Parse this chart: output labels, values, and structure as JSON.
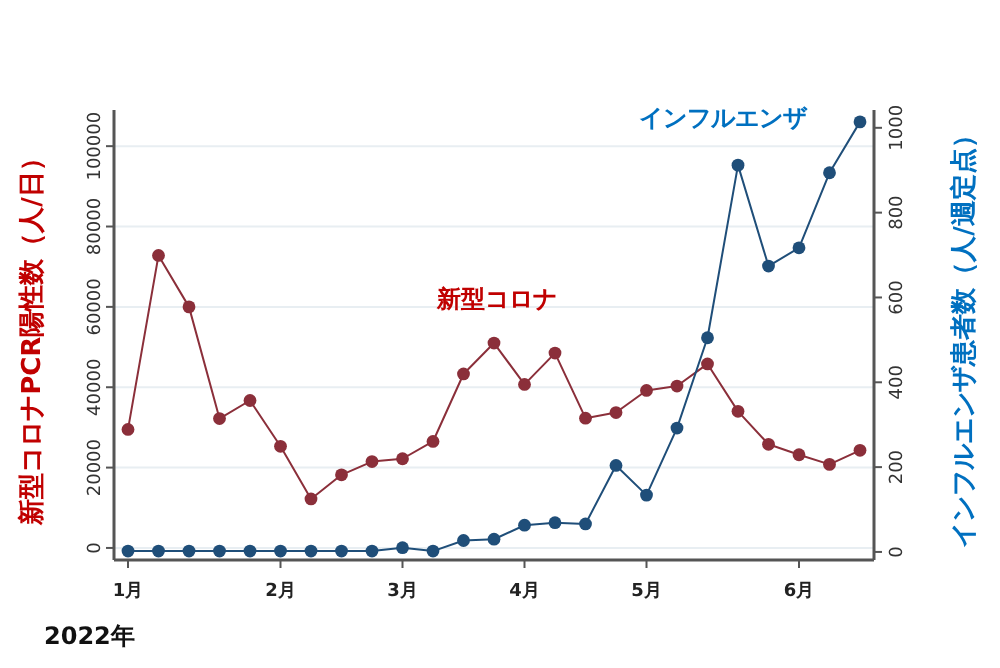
{
  "chart_data": {
    "type": "line",
    "categories": [
      "1月",
      null,
      null,
      null,
      null,
      "2月",
      null,
      null,
      null,
      "3月",
      null,
      null,
      null,
      "4月",
      null,
      null,
      null,
      "5月",
      null,
      null,
      null,
      null,
      "6月",
      null,
      null
    ],
    "series": [
      {
        "name": "新型コロナ",
        "color": "#8b2f3a",
        "values": [
          29500,
          72800,
          60000,
          32200,
          36700,
          25300,
          12200,
          18200,
          21500,
          22200,
          26500,
          43300,
          51000,
          40700,
          48500,
          32300,
          33700,
          39200,
          40300,
          45800,
          34000,
          25800,
          23200,
          20800,
          24300
        ]
      },
      {
        "name": "インフルエンザ",
        "color": "#1f4e79",
        "axis": "y2",
        "values": [
          2,
          2,
          2,
          2,
          2,
          2,
          2,
          2,
          2,
          10,
          2,
          27,
          30,
          63,
          69,
          66,
          204,
          134,
          292,
          505,
          912,
          674,
          717,
          894,
          1014
        ]
      }
    ],
    "ylim": [
      -3000,
      109000
    ],
    "yticks": [
      0,
      20000,
      40000,
      60000,
      80000,
      100000
    ],
    "y2lim": [
      -19,
      1042
    ],
    "y2ticks": [
      0,
      200,
      400,
      600,
      800,
      1000
    ],
    "xlabel": "2022年",
    "ylabel": "新型コロナPCR陽性数（人/日）",
    "y2label": "インフルエンザ患者数（人/週定点）",
    "marker": "circle",
    "grid": "y"
  }
}
